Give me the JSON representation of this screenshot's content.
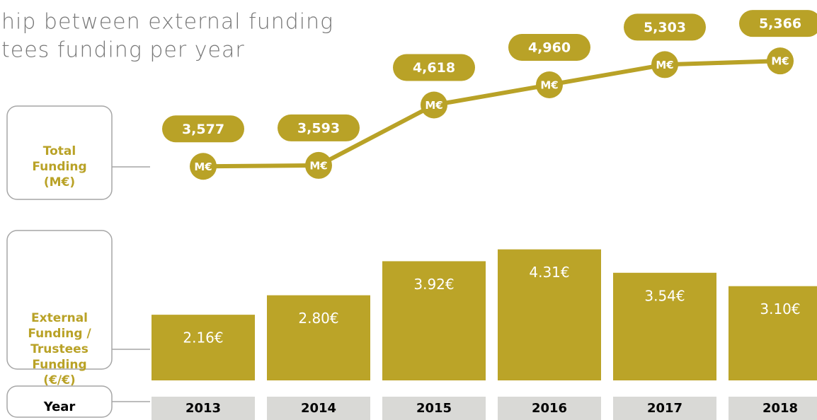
{
  "chart_data": [
    {
      "type": "line",
      "title_lines": [
        "hip between external funding",
        "tees funding per year"
      ],
      "label_lines": [
        "Total",
        "Funding",
        "(M€)"
      ],
      "categories": [
        "2013",
        "2014",
        "2015",
        "2016",
        "2017",
        "2018"
      ],
      "values": [
        3577,
        3593,
        4618,
        4960,
        5303,
        5366
      ],
      "value_labels": [
        "3,577",
        "3,593",
        "4,618",
        "4,960",
        "5,303",
        "5,366"
      ],
      "marker_label": "M€",
      "color": "#b9a227",
      "ylim": [
        2800,
        5920
      ]
    },
    {
      "type": "bar",
      "label_lines": [
        "External",
        "Funding /",
        "Trustees",
        "Funding",
        "(€/€)"
      ],
      "x_label": "Year",
      "categories": [
        "2013",
        "2014",
        "2015",
        "2016",
        "2017",
        "2018"
      ],
      "values": [
        2.16,
        2.8,
        3.92,
        4.31,
        3.54,
        3.1
      ],
      "value_labels": [
        "2.16€",
        "2.80€",
        "3.92€",
        "4.31€",
        "3.54€",
        "3.10€"
      ],
      "color": "#bba428",
      "ylim": [
        0,
        5
      ]
    }
  ]
}
